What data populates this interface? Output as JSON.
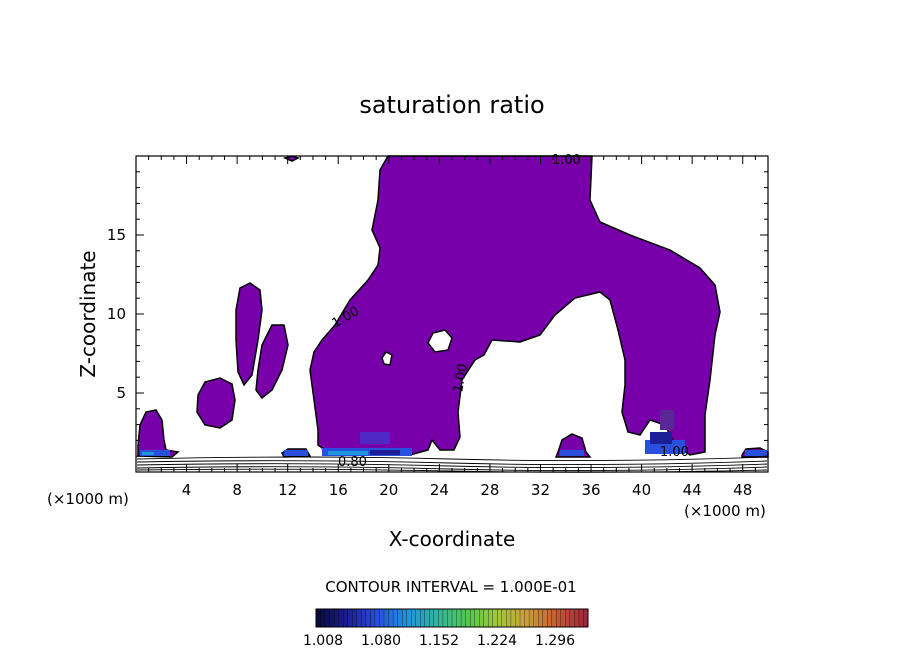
{
  "chart_data": {
    "type": "contour",
    "title": "saturation ratio",
    "xlabel": "X-coordinate",
    "ylabel": "Z-coordinate",
    "x_unit": "(×1000 m)",
    "x_ticks": [
      "4",
      "8",
      "12",
      "16",
      "20",
      "24",
      "28",
      "32",
      "36",
      "40",
      "44",
      "48"
    ],
    "y_ticks": [
      "5",
      "10",
      "15"
    ],
    "xlim": [
      0,
      50
    ],
    "ylim": [
      0,
      20
    ],
    "contour_interval_label": "CONTOUR INTERVAL = 1.000E-01",
    "contour_labels": [
      "1.00",
      "1.00",
      "1.00",
      "0.80",
      "1.00"
    ],
    "fill_color": "#7800aa",
    "colorbar": {
      "labels": [
        "1.008",
        "1.080",
        "1.152",
        "1.224",
        "1.296"
      ],
      "colors": [
        "#0a0a3c",
        "#1e1e96",
        "#2850dc",
        "#1e96dc",
        "#32b4a0",
        "#50c850",
        "#a0c83c",
        "#c8a03c",
        "#c85a32",
        "#a0283c"
      ]
    }
  }
}
